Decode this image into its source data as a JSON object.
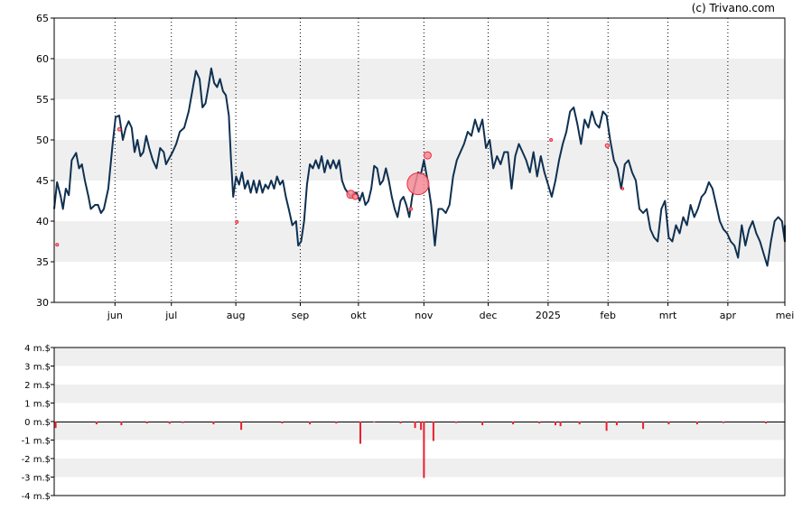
{
  "copyright": "(c) Trivano.com",
  "colors": {
    "band": "#efefef",
    "price_line": "#0f3050",
    "marker": "#ee2a3a",
    "marker_fill": "#f58a95",
    "volume_bar": "#e8202e",
    "grid": "#000000"
  },
  "chart_data": [
    {
      "type": "line",
      "name": "price",
      "ylim": [
        30,
        65
      ],
      "yticks": [
        "30",
        "35",
        "40",
        "45",
        "50",
        "55",
        "60",
        "65"
      ],
      "xlim": [
        0,
        50
      ],
      "x_ticks": [
        {
          "label": "jun",
          "x": 4.16
        },
        {
          "label": "jul",
          "x": 8.02
        },
        {
          "label": "aug",
          "x": 12.43
        },
        {
          "label": "sep",
          "x": 16.84
        },
        {
          "label": "okt",
          "x": 20.82
        },
        {
          "label": "nov",
          "x": 25.3
        },
        {
          "label": "dec",
          "x": 29.7
        },
        {
          "label": "2025",
          "x": 33.8
        },
        {
          "label": "feb",
          "x": 37.9
        },
        {
          "label": "mrt",
          "x": 42.0
        },
        {
          "label": "apr",
          "x": 46.1
        },
        {
          "label": "mei",
          "x": 50.0
        }
      ],
      "series": [
        {
          "values": [
            [
              0.0,
              41.5
            ],
            [
              0.2,
              44.8
            ],
            [
              0.45,
              43.0
            ],
            [
              0.6,
              41.5
            ],
            [
              0.8,
              44.0
            ],
            [
              1.0,
              43.2
            ],
            [
              1.2,
              47.5
            ],
            [
              1.5,
              48.4
            ],
            [
              1.7,
              46.5
            ],
            [
              1.9,
              47.0
            ],
            [
              2.1,
              45.0
            ],
            [
              2.35,
              43.0
            ],
            [
              2.5,
              41.5
            ],
            [
              2.8,
              42.0
            ],
            [
              3.0,
              42.0
            ],
            [
              3.2,
              41.0
            ],
            [
              3.4,
              41.5
            ],
            [
              3.7,
              44.0
            ],
            [
              4.0,
              49.5
            ],
            [
              4.2,
              52.8
            ],
            [
              4.45,
              53.0
            ],
            [
              4.7,
              50.0
            ],
            [
              4.9,
              51.5
            ],
            [
              5.1,
              52.3
            ],
            [
              5.3,
              51.5
            ],
            [
              5.5,
              48.5
            ],
            [
              5.7,
              50.0
            ],
            [
              5.9,
              48.0
            ],
            [
              6.1,
              48.5
            ],
            [
              6.3,
              50.5
            ],
            [
              6.5,
              49.0
            ],
            [
              6.75,
              47.5
            ],
            [
              7.0,
              46.5
            ],
            [
              7.25,
              49.0
            ],
            [
              7.5,
              48.5
            ],
            [
              7.65,
              47.0
            ],
            [
              7.8,
              47.5
            ],
            [
              8.1,
              48.5
            ],
            [
              8.35,
              49.5
            ],
            [
              8.6,
              51.0
            ],
            [
              8.9,
              51.5
            ],
            [
              9.2,
              53.5
            ],
            [
              9.45,
              56.0
            ],
            [
              9.7,
              58.5
            ],
            [
              9.95,
              57.5
            ],
            [
              10.15,
              54.0
            ],
            [
              10.35,
              54.5
            ],
            [
              10.55,
              56.5
            ],
            [
              10.75,
              58.8
            ],
            [
              10.95,
              57.0
            ],
            [
              11.15,
              56.5
            ],
            [
              11.35,
              57.5
            ],
            [
              11.55,
              56.0
            ],
            [
              11.75,
              55.5
            ],
            [
              11.95,
              53.0
            ],
            [
              12.1,
              47.5
            ],
            [
              12.25,
              43.0
            ],
            [
              12.45,
              45.5
            ],
            [
              12.65,
              44.5
            ],
            [
              12.85,
              46.0
            ],
            [
              13.05,
              44.0
            ],
            [
              13.25,
              45.0
            ],
            [
              13.45,
              43.5
            ],
            [
              13.65,
              45.0
            ],
            [
              13.85,
              43.5
            ],
            [
              14.05,
              45.0
            ],
            [
              14.25,
              43.5
            ],
            [
              14.45,
              44.5
            ],
            [
              14.65,
              44.0
            ],
            [
              14.85,
              45.0
            ],
            [
              15.05,
              44.0
            ],
            [
              15.25,
              45.5
            ],
            [
              15.45,
              44.5
            ],
            [
              15.65,
              45.0
            ],
            [
              15.85,
              43.0
            ],
            [
              16.05,
              41.5
            ],
            [
              16.3,
              39.5
            ],
            [
              16.55,
              40.0
            ],
            [
              16.7,
              37.0
            ],
            [
              16.9,
              37.5
            ],
            [
              17.1,
              40.0
            ],
            [
              17.3,
              44.5
            ],
            [
              17.5,
              47.0
            ],
            [
              17.7,
              46.5
            ],
            [
              17.9,
              47.5
            ],
            [
              18.1,
              46.5
            ],
            [
              18.3,
              48.0
            ],
            [
              18.5,
              46.0
            ],
            [
              18.7,
              47.5
            ],
            [
              18.9,
              46.5
            ],
            [
              19.1,
              47.5
            ],
            [
              19.3,
              46.5
            ],
            [
              19.5,
              47.5
            ],
            [
              19.7,
              45.0
            ],
            [
              19.9,
              44.0
            ],
            [
              20.1,
              43.5
            ],
            [
              20.3,
              43.0
            ],
            [
              20.5,
              43.5
            ],
            [
              20.7,
              43.5
            ],
            [
              20.9,
              42.5
            ],
            [
              21.1,
              43.5
            ],
            [
              21.3,
              42.0
            ],
            [
              21.5,
              42.5
            ],
            [
              21.7,
              44.0
            ],
            [
              21.9,
              46.8
            ],
            [
              22.1,
              46.5
            ],
            [
              22.3,
              44.5
            ],
            [
              22.5,
              45.0
            ],
            [
              22.7,
              46.5
            ],
            [
              22.9,
              45.0
            ],
            [
              23.1,
              43.0
            ],
            [
              23.3,
              41.5
            ],
            [
              23.5,
              40.5
            ],
            [
              23.7,
              42.5
            ],
            [
              23.9,
              43.0
            ],
            [
              24.1,
              42.0
            ],
            [
              24.3,
              40.5
            ],
            [
              24.5,
              43.0
            ],
            [
              24.7,
              44.5
            ],
            [
              24.9,
              46.0
            ],
            [
              25.1,
              45.8
            ],
            [
              25.3,
              47.5
            ],
            [
              25.55,
              45.0
            ],
            [
              25.8,
              42.0
            ],
            [
              26.05,
              37.0
            ],
            [
              26.3,
              41.5
            ],
            [
              26.55,
              41.5
            ],
            [
              26.8,
              41.0
            ],
            [
              27.05,
              42.0
            ],
            [
              27.3,
              45.5
            ],
            [
              27.55,
              47.5
            ],
            [
              27.8,
              48.5
            ],
            [
              28.05,
              49.5
            ],
            [
              28.3,
              51.0
            ],
            [
              28.55,
              50.5
            ],
            [
              28.8,
              52.5
            ],
            [
              29.05,
              51.0
            ],
            [
              29.3,
              52.5
            ],
            [
              29.55,
              49.0
            ],
            [
              29.8,
              50.0
            ],
            [
              30.05,
              46.5
            ],
            [
              30.3,
              48.0
            ],
            [
              30.55,
              47.0
            ],
            [
              30.8,
              48.5
            ],
            [
              31.05,
              48.5
            ],
            [
              31.3,
              44.0
            ],
            [
              31.55,
              48.0
            ],
            [
              31.8,
              49.5
            ],
            [
              32.05,
              48.5
            ],
            [
              32.3,
              47.5
            ],
            [
              32.55,
              46.0
            ],
            [
              32.8,
              48.5
            ],
            [
              33.05,
              45.5
            ],
            [
              33.3,
              48.0
            ],
            [
              33.55,
              46.0
            ],
            [
              33.8,
              44.5
            ],
            [
              34.05,
              43.0
            ],
            [
              34.3,
              45.0
            ],
            [
              34.55,
              47.5
            ],
            [
              34.8,
              49.5
            ],
            [
              35.05,
              51.0
            ],
            [
              35.3,
              53.5
            ],
            [
              35.55,
              54.0
            ],
            [
              35.8,
              52.0
            ],
            [
              36.05,
              49.5
            ],
            [
              36.3,
              52.5
            ],
            [
              36.55,
              51.5
            ],
            [
              36.8,
              53.5
            ],
            [
              37.05,
              52.0
            ],
            [
              37.3,
              51.5
            ],
            [
              37.55,
              53.5
            ],
            [
              37.8,
              53.0
            ],
            [
              38.05,
              50.0
            ],
            [
              38.3,
              47.5
            ],
            [
              38.55,
              46.5
            ],
            [
              38.8,
              44.0
            ],
            [
              39.05,
              47.0
            ],
            [
              39.3,
              47.5
            ],
            [
              39.55,
              46.0
            ],
            [
              39.8,
              45.0
            ],
            [
              40.05,
              41.5
            ],
            [
              40.3,
              41.0
            ],
            [
              40.55,
              41.5
            ],
            [
              40.8,
              39.0
            ],
            [
              41.05,
              38.0
            ],
            [
              41.3,
              37.5
            ],
            [
              41.55,
              41.5
            ],
            [
              41.8,
              42.5
            ],
            [
              42.05,
              38.0
            ],
            [
              42.3,
              37.5
            ],
            [
              42.55,
              39.5
            ],
            [
              42.8,
              38.5
            ],
            [
              43.05,
              40.5
            ],
            [
              43.3,
              39.5
            ],
            [
              43.55,
              42.0
            ],
            [
              43.8,
              40.5
            ],
            [
              44.05,
              41.5
            ],
            [
              44.3,
              43.0
            ],
            [
              44.55,
              43.5
            ],
            [
              44.8,
              44.8
            ],
            [
              45.05,
              44.0
            ],
            [
              45.3,
              42.0
            ],
            [
              45.55,
              40.0
            ],
            [
              45.8,
              39.0
            ],
            [
              46.05,
              38.5
            ],
            [
              46.3,
              37.5
            ],
            [
              46.55,
              37.0
            ],
            [
              46.8,
              35.5
            ],
            [
              47.05,
              39.5
            ],
            [
              47.3,
              37.0
            ],
            [
              47.55,
              39.0
            ],
            [
              47.8,
              40.0
            ],
            [
              48.05,
              38.5
            ],
            [
              48.3,
              37.5
            ],
            [
              48.55,
              36.0
            ],
            [
              48.8,
              34.5
            ],
            [
              49.05,
              37.5
            ],
            [
              49.3,
              40.0
            ],
            [
              49.55,
              40.5
            ],
            [
              49.8,
              40.0
            ],
            [
              50.05,
              37.5
            ],
            [
              50.3,
              39.5
            ]
          ]
        }
      ],
      "markers": [
        {
          "x": 0.2,
          "y": 37.1,
          "size": 1.5
        },
        {
          "x": 4.45,
          "y": 51.3,
          "size": 1.8
        },
        {
          "x": 12.5,
          "y": 39.9,
          "size": 1.5
        },
        {
          "x": 20.3,
          "y": 43.3,
          "size": 4.5
        },
        {
          "x": 20.6,
          "y": 43.0,
          "size": 3.0
        },
        {
          "x": 24.4,
          "y": 41.5,
          "size": 1.8
        },
        {
          "x": 24.9,
          "y": 44.6,
          "size": 12.0
        },
        {
          "x": 25.55,
          "y": 48.1,
          "size": 4.0
        },
        {
          "x": 34.0,
          "y": 50.0,
          "size": 1.5
        },
        {
          "x": 37.85,
          "y": 49.3,
          "size": 2.2
        },
        {
          "x": 38.9,
          "y": 44.0,
          "size": 1.2
        }
      ]
    },
    {
      "type": "bar",
      "name": "volume",
      "unit": "m.$",
      "ylim": [
        -4,
        4
      ],
      "yticks": [
        "-4 m.$",
        "-3 m.$",
        "-2 m.$",
        "-1 m.$",
        "0 m.$",
        "1 m.$",
        "2 m.$",
        "3 m.$",
        "4 m.$"
      ],
      "bars": [
        {
          "x": 0.1,
          "v": -0.35
        },
        {
          "x": 2.9,
          "v": -0.15
        },
        {
          "x": 4.6,
          "v": -0.2
        },
        {
          "x": 6.35,
          "v": -0.1
        },
        {
          "x": 7.9,
          "v": -0.12
        },
        {
          "x": 8.8,
          "v": -0.08
        },
        {
          "x": 10.9,
          "v": -0.15
        },
        {
          "x": 12.8,
          "v": -0.45
        },
        {
          "x": 15.6,
          "v": -0.1
        },
        {
          "x": 17.5,
          "v": -0.15
        },
        {
          "x": 19.3,
          "v": -0.1
        },
        {
          "x": 20.95,
          "v": -1.2
        },
        {
          "x": 21.9,
          "v": -0.05
        },
        {
          "x": 23.7,
          "v": -0.1
        },
        {
          "x": 24.7,
          "v": -0.35
        },
        {
          "x": 25.1,
          "v": -0.45
        },
        {
          "x": 25.3,
          "v": -3.05
        },
        {
          "x": 25.95,
          "v": -1.05
        },
        {
          "x": 27.5,
          "v": -0.08
        },
        {
          "x": 29.3,
          "v": -0.2
        },
        {
          "x": 31.4,
          "v": -0.15
        },
        {
          "x": 33.2,
          "v": -0.1
        },
        {
          "x": 34.3,
          "v": -0.2
        },
        {
          "x": 34.65,
          "v": -0.25
        },
        {
          "x": 35.95,
          "v": -0.15
        },
        {
          "x": 37.8,
          "v": -0.5
        },
        {
          "x": 38.5,
          "v": -0.2
        },
        {
          "x": 40.3,
          "v": -0.4
        },
        {
          "x": 42.05,
          "v": -0.15
        },
        {
          "x": 44.0,
          "v": -0.15
        },
        {
          "x": 45.8,
          "v": -0.08
        },
        {
          "x": 48.7,
          "v": -0.1
        }
      ]
    }
  ]
}
